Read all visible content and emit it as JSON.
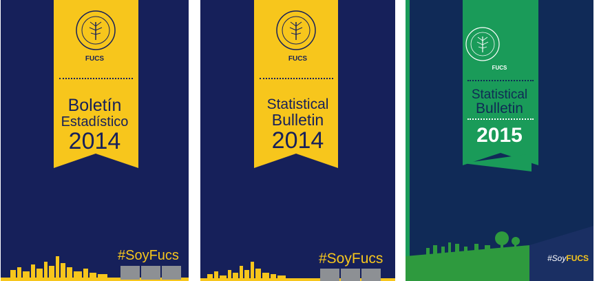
{
  "covers": [
    {
      "org": "FUCS",
      "title_lines": [
        "Boletín",
        "Estadístico"
      ],
      "year": "2014",
      "hashtag": "#SoyFucs",
      "logo_icon": "fucs-seal-icon",
      "colors": {
        "background": "#16205a",
        "ribbon": "#f7c61c",
        "text": "#16205a"
      }
    },
    {
      "org": "FUCS",
      "title_lines": [
        "Statistical",
        "Bulletin"
      ],
      "year": "2014",
      "hashtag": "#SoyFucs",
      "logo_icon": "fucs-seal-icon",
      "colors": {
        "background": "#16205a",
        "ribbon": "#f7c61c",
        "text": "#16205a"
      }
    },
    {
      "org": "FUCS",
      "title_lines": [
        "Statistical",
        "Bulletin"
      ],
      "year": "2015",
      "hashtag_prefix": "#Soy",
      "hashtag_suffix": "FUCS",
      "logo_icon": "fucs-seal-icon",
      "colors": {
        "background": "#102a57",
        "ribbon": "#1a9b59",
        "text": "#0f2b55",
        "ground": "#2e9a3e"
      }
    }
  ]
}
